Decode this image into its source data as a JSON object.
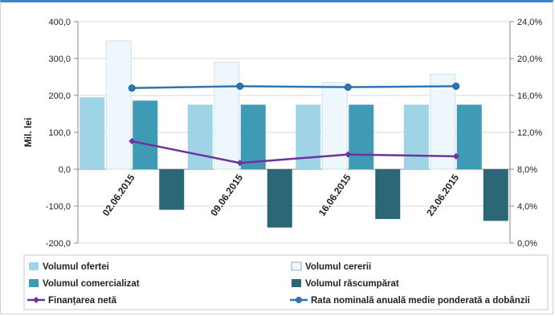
{
  "chart_data": {
    "type": "bar",
    "categories": [
      "02.06.2015",
      "09.06.2015",
      "16.06.2015",
      "23.06.2015"
    ],
    "ylabel": "Mil. lei",
    "ylim": [
      -200,
      400
    ],
    "yticks_left": [
      "400,0",
      "300,0",
      "200,0",
      "100,0",
      "0,0",
      "-100,0",
      "-200,0"
    ],
    "y2lim": [
      0,
      24
    ],
    "yticks_right": [
      "24,0%",
      "20,0%",
      "16,0%",
      "12,0%",
      "8,0%",
      "4,0%",
      "0,0%"
    ],
    "grid": true,
    "legend_position": "bottom",
    "series": [
      {
        "name": "Volumul ofertei",
        "kind": "bar",
        "color": "#9fd3e6",
        "values": [
          195,
          175,
          175,
          175
        ]
      },
      {
        "name": "Volumul cererii",
        "kind": "bar",
        "color": "#eef8fc",
        "values": [
          348,
          290,
          235,
          258
        ]
      },
      {
        "name": "Volumul comercializat",
        "kind": "bar",
        "color": "#3f9bb5",
        "values": [
          186,
          175,
          175,
          175
        ]
      },
      {
        "name": "Volumul răscumpărat",
        "kind": "bar",
        "color": "#2b6777",
        "values": [
          -110,
          -158,
          -135,
          -140
        ]
      },
      {
        "name": "Finanțarea netă",
        "kind": "line",
        "axis": "left",
        "color": "#7030a0",
        "values": [
          76,
          17,
          40,
          35
        ]
      },
      {
        "name": "Rata nominală anuală medie ponderată a dobânzii",
        "kind": "line",
        "axis": "right",
        "color": "#2e75b6",
        "values": [
          16.8,
          17.0,
          16.9,
          17.0
        ]
      }
    ]
  }
}
